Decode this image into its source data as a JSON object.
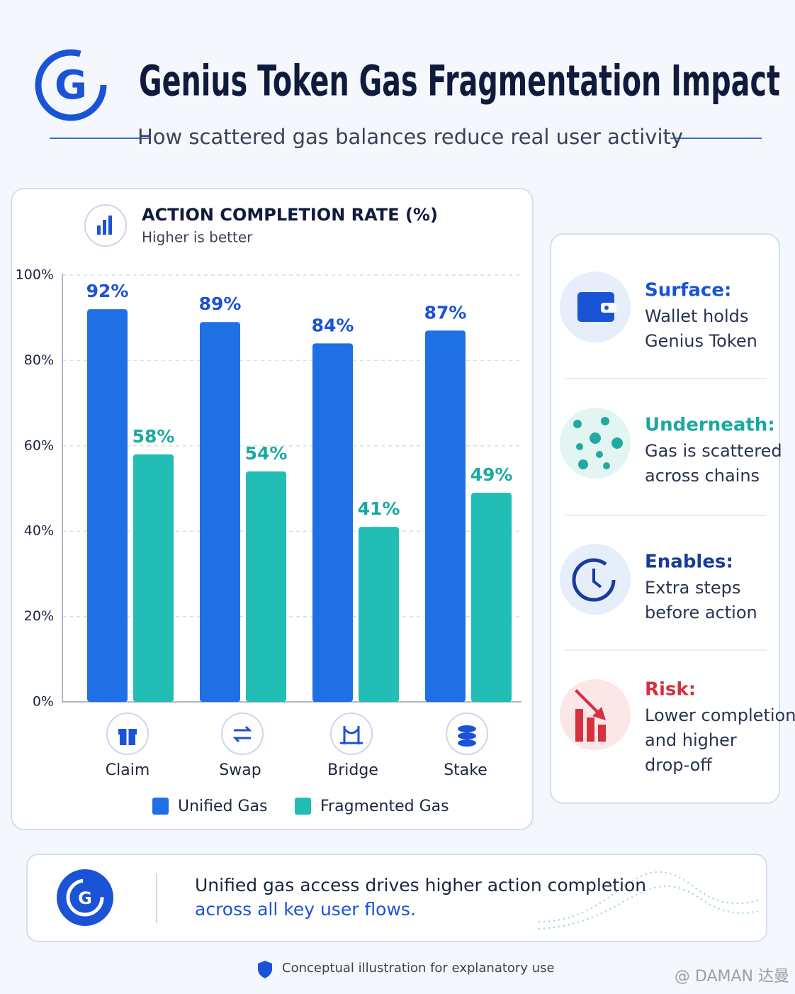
{
  "header": {
    "title": "Genius Token Gas Fragmentation Impact",
    "subtitle": "How scattered gas balances reduce real user activity"
  },
  "chart_data": {
    "type": "bar",
    "title": "ACTION COMPLETION RATE (%)",
    "subtitle": "Higher is better",
    "categories": [
      "Claim",
      "Swap",
      "Bridge",
      "Stake"
    ],
    "series": [
      {
        "name": "Unified Gas",
        "color": "#1f6fe5",
        "values": [
          92,
          89,
          84,
          87
        ],
        "value_labels": [
          "92%",
          "89%",
          "84%",
          "87%"
        ]
      },
      {
        "name": "Fragmented Gas",
        "color": "#22bdb5",
        "values": [
          58,
          54,
          41,
          49
        ],
        "value_labels": [
          "58%",
          "54%",
          "41%",
          "49%"
        ]
      }
    ],
    "ylim": [
      0,
      100
    ],
    "yticks": [
      {
        "value": 0,
        "label": "0%"
      },
      {
        "value": 20,
        "label": "20%"
      },
      {
        "value": 40,
        "label": "40%"
      },
      {
        "value": 60,
        "label": "60%"
      },
      {
        "value": 80,
        "label": "80%"
      },
      {
        "value": 100,
        "label": "100%"
      }
    ],
    "grid": true
  },
  "insights": [
    {
      "label": "Surface:",
      "lines": [
        "Wallet holds",
        "Genius Token"
      ]
    },
    {
      "label": "Underneath:",
      "lines": [
        "Gas is scattered",
        "across chains"
      ]
    },
    {
      "label": "Enables:",
      "lines": [
        "Extra steps",
        "before action"
      ]
    },
    {
      "label": "Risk:",
      "lines": [
        "Lower completion",
        "and higher",
        "drop-off"
      ]
    }
  ],
  "footer": {
    "lines": [
      "Unified gas access drives higher action completion",
      "across all key user flows."
    ],
    "note": "Conceptual illustration for explanatory use"
  },
  "watermark": "@ DAMAN 达曼"
}
